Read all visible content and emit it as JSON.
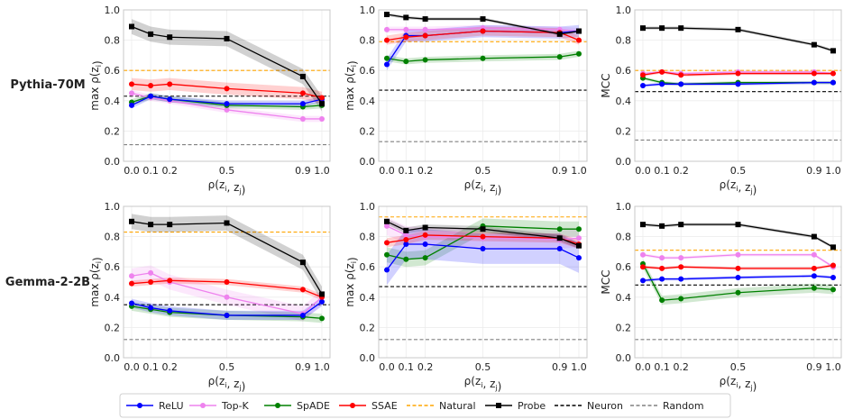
{
  "rows": [
    "Pythia-70M",
    "Gemma-2-2B"
  ],
  "legend": [
    {
      "name": "ReLU",
      "color": "#0000ff",
      "marker": "circle",
      "dash": "solid"
    },
    {
      "name": "Top-K",
      "color": "#ee82ee",
      "marker": "circle",
      "dash": "solid"
    },
    {
      "name": "SpADE",
      "color": "#008000",
      "marker": "circle",
      "dash": "solid"
    },
    {
      "name": "SSAE",
      "color": "#ff0000",
      "marker": "circle",
      "dash": "solid"
    },
    {
      "name": "Natural",
      "color": "#ffa500",
      "marker": "none",
      "dash": "dashed"
    },
    {
      "name": "Probe",
      "color": "#000000",
      "marker": "square",
      "dash": "solid"
    },
    {
      "name": "Neuron",
      "color": "#000000",
      "marker": "none",
      "dash": "dashed"
    },
    {
      "name": "Random",
      "color": "#808080",
      "marker": "none",
      "dash": "dashed"
    }
  ],
  "chart_data": [
    {
      "type": "line",
      "row": "Pythia-70M",
      "xlabel": "ρ(z_i, z_j)",
      "ylabel": "max ρ(z_i)",
      "xlim": [
        0,
        1
      ],
      "ylim": [
        0,
        1
      ],
      "xticks": [
        "0.0",
        "0.1",
        "0.2",
        "0.5",
        "0.9",
        "1.0"
      ],
      "yticks": [
        "0.0",
        "0.2",
        "0.4",
        "0.6",
        "0.8",
        "1.0"
      ],
      "x": [
        0.0,
        0.1,
        0.2,
        0.5,
        0.9,
        1.0
      ],
      "series": [
        {
          "name": "ReLU",
          "values": [
            0.37,
            0.43,
            0.41,
            0.38,
            0.38,
            0.41
          ],
          "band": 0.02
        },
        {
          "name": "Top-K",
          "values": [
            0.45,
            0.42,
            0.4,
            0.34,
            0.28,
            0.28
          ],
          "band": 0.02
        },
        {
          "name": "SpADE",
          "values": [
            0.39,
            0.43,
            0.41,
            0.37,
            0.36,
            0.37
          ],
          "band": 0.02
        },
        {
          "name": "SSAE",
          "values": [
            0.51,
            0.5,
            0.51,
            0.48,
            0.45,
            0.42
          ],
          "band": 0.04
        },
        {
          "name": "Probe",
          "values": [
            0.89,
            0.84,
            0.82,
            0.81,
            0.56,
            0.38
          ],
          "band": 0.05
        }
      ],
      "hlines": {
        "Natural": 0.6,
        "Neuron": 0.43,
        "Random": 0.11
      }
    },
    {
      "type": "line",
      "row": "Pythia-70M",
      "xlabel": "ρ(z_i, z_j)",
      "ylabel": "max ρ(z_i)",
      "xlim": [
        0,
        1
      ],
      "ylim": [
        0,
        1
      ],
      "xticks": [
        "0.0",
        "0.1",
        "0.2",
        "0.5",
        "0.9",
        "1.0"
      ],
      "yticks": [
        "0.0",
        "0.2",
        "0.4",
        "0.6",
        "0.8",
        "1.0"
      ],
      "x": [
        0.0,
        0.1,
        0.2,
        0.5,
        0.9,
        1.0
      ],
      "series": [
        {
          "name": "ReLU",
          "values": [
            0.64,
            0.83,
            0.83,
            0.86,
            0.85,
            0.86
          ],
          "band": 0.04
        },
        {
          "name": "Top-K",
          "values": [
            0.87,
            0.87,
            0.87,
            0.88,
            0.87,
            0.86
          ],
          "band": 0.02
        },
        {
          "name": "SpADE",
          "values": [
            0.68,
            0.66,
            0.67,
            0.68,
            0.69,
            0.71
          ],
          "band": 0.02
        },
        {
          "name": "SSAE",
          "values": [
            0.8,
            0.82,
            0.83,
            0.86,
            0.85,
            0.8
          ],
          "band": 0.03
        },
        {
          "name": "Probe",
          "values": [
            0.97,
            0.95,
            0.94,
            0.94,
            0.84,
            0.86
          ],
          "band": 0.01
        }
      ],
      "hlines": {
        "Natural": 0.79,
        "Neuron": 0.47,
        "Random": 0.13
      }
    },
    {
      "type": "line",
      "row": "Pythia-70M",
      "xlabel": "ρ(z_i, z_j)",
      "ylabel": "MCC",
      "xlim": [
        0,
        1
      ],
      "ylim": [
        0,
        1
      ],
      "xticks": [
        "0.0",
        "0.1",
        "0.2",
        "0.5",
        "0.9",
        "1.0"
      ],
      "yticks": [
        "0.0",
        "0.2",
        "0.4",
        "0.6",
        "0.8",
        "1.0"
      ],
      "x": [
        0.0,
        0.1,
        0.2,
        0.5,
        0.9,
        1.0
      ],
      "series": [
        {
          "name": "ReLU",
          "values": [
            0.5,
            0.51,
            0.51,
            0.51,
            0.52,
            0.52
          ],
          "band": 0.01
        },
        {
          "name": "Top-K",
          "values": [
            0.58,
            0.59,
            0.58,
            0.59,
            0.59,
            0.58
          ],
          "band": 0.01
        },
        {
          "name": "SpADE",
          "values": [
            0.55,
            0.52,
            0.51,
            0.52,
            0.52,
            0.52
          ],
          "band": 0.01
        },
        {
          "name": "SSAE",
          "values": [
            0.57,
            0.59,
            0.57,
            0.58,
            0.58,
            0.58
          ],
          "band": 0.01
        },
        {
          "name": "Probe",
          "values": [
            0.88,
            0.88,
            0.88,
            0.87,
            0.77,
            0.73
          ],
          "band": 0.01
        }
      ],
      "hlines": {
        "Natural": 0.6,
        "Neuron": 0.46,
        "Random": 0.14
      }
    },
    {
      "type": "line",
      "row": "Gemma-2-2B",
      "xlabel": "ρ(z_i, z_j)",
      "ylabel": "max ρ(z_i)",
      "xlim": [
        0,
        1
      ],
      "ylim": [
        0,
        1
      ],
      "xticks": [
        "0.0",
        "0.1",
        "0.2",
        "0.5",
        "0.9",
        "1.0"
      ],
      "yticks": [
        "0.0",
        "0.2",
        "0.4",
        "0.6",
        "0.8",
        "1.0"
      ],
      "x": [
        0.0,
        0.1,
        0.2,
        0.5,
        0.9,
        1.0
      ],
      "series": [
        {
          "name": "ReLU",
          "values": [
            0.36,
            0.33,
            0.31,
            0.28,
            0.28,
            0.37
          ],
          "band": 0.03
        },
        {
          "name": "Top-K",
          "values": [
            0.54,
            0.56,
            0.5,
            0.4,
            0.29,
            0.4
          ],
          "band": 0.05
        },
        {
          "name": "SpADE",
          "values": [
            0.34,
            0.32,
            0.3,
            0.28,
            0.27,
            0.26
          ],
          "band": 0.03
        },
        {
          "name": "SSAE",
          "values": [
            0.49,
            0.5,
            0.51,
            0.5,
            0.45,
            0.4
          ],
          "band": 0.02
        },
        {
          "name": "Probe",
          "values": [
            0.9,
            0.88,
            0.88,
            0.89,
            0.63,
            0.42
          ],
          "band": 0.05
        }
      ],
      "hlines": {
        "Natural": 0.83,
        "Neuron": 0.35,
        "Random": 0.12
      }
    },
    {
      "type": "line",
      "row": "Gemma-2-2B",
      "xlabel": "ρ(z_i, z_j)",
      "ylabel": "max ρ(z_i)",
      "xlim": [
        0,
        1
      ],
      "ylim": [
        0,
        1
      ],
      "xticks": [
        "0.0",
        "0.1",
        "0.2",
        "0.5",
        "0.9",
        "1.0"
      ],
      "yticks": [
        "0.0",
        "0.2",
        "0.4",
        "0.6",
        "0.8",
        "1.0"
      ],
      "x": [
        0.0,
        0.1,
        0.2,
        0.5,
        0.9,
        1.0
      ],
      "series": [
        {
          "name": "ReLU",
          "values": [
            0.58,
            0.75,
            0.75,
            0.72,
            0.72,
            0.66
          ],
          "band": 0.1
        },
        {
          "name": "Top-K",
          "values": [
            0.87,
            0.81,
            0.8,
            0.79,
            0.78,
            0.79
          ],
          "band": 0.06
        },
        {
          "name": "SpADE",
          "values": [
            0.68,
            0.65,
            0.66,
            0.87,
            0.85,
            0.85
          ],
          "band": 0.05
        },
        {
          "name": "SSAE",
          "values": [
            0.76,
            0.78,
            0.81,
            0.8,
            0.79,
            0.75
          ],
          "band": 0.03
        },
        {
          "name": "Probe",
          "values": [
            0.9,
            0.84,
            0.86,
            0.85,
            0.79,
            0.74
          ],
          "band": 0.02
        }
      ],
      "hlines": {
        "Natural": 0.93,
        "Neuron": 0.47,
        "Random": 0.12
      }
    },
    {
      "type": "line",
      "row": "Gemma-2-2B",
      "xlabel": "ρ(z_i, z_j)",
      "ylabel": "MCC",
      "xlim": [
        0,
        1
      ],
      "ylim": [
        0,
        1
      ],
      "xticks": [
        "0.0",
        "0.1",
        "0.2",
        "0.5",
        "0.9",
        "1.0"
      ],
      "yticks": [
        "0.0",
        "0.2",
        "0.4",
        "0.6",
        "0.8",
        "1.0"
      ],
      "x": [
        0.0,
        0.1,
        0.2,
        0.5,
        0.9,
        1.0
      ],
      "series": [
        {
          "name": "ReLU",
          "values": [
            0.51,
            0.52,
            0.52,
            0.53,
            0.54,
            0.53
          ],
          "band": 0.01
        },
        {
          "name": "Top-K",
          "values": [
            0.68,
            0.66,
            0.66,
            0.68,
            0.68,
            0.6
          ],
          "band": 0.01
        },
        {
          "name": "SpADE",
          "values": [
            0.62,
            0.38,
            0.39,
            0.43,
            0.46,
            0.45
          ],
          "band": 0.03
        },
        {
          "name": "SSAE",
          "values": [
            0.6,
            0.59,
            0.6,
            0.59,
            0.59,
            0.61
          ],
          "band": 0.01
        },
        {
          "name": "Probe",
          "values": [
            0.88,
            0.87,
            0.88,
            0.88,
            0.8,
            0.73
          ],
          "band": 0.01
        }
      ],
      "hlines": {
        "Natural": 0.71,
        "Neuron": 0.48,
        "Random": 0.12
      }
    }
  ]
}
